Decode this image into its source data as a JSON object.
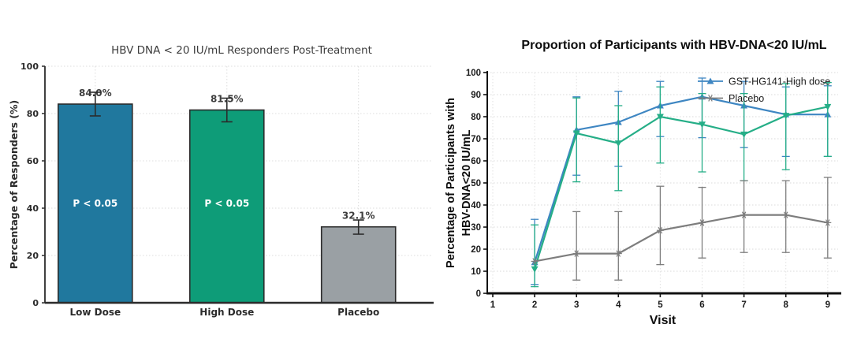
{
  "page": {
    "background": "#ffffff"
  },
  "chart_data": [
    {
      "type": "bar",
      "title": "HBV DNA < 20 IU/mL Responders Post-Treatment",
      "ylabel": "Percentage of Responders (%)",
      "xlabel": "",
      "categories": [
        "Low Dose",
        "High Dose",
        "Placebo"
      ],
      "values": [
        84.0,
        81.5,
        32.1
      ],
      "value_labels": [
        "84.0%",
        "81.5%",
        "32.1%"
      ],
      "bar_annotations": [
        "P < 0.05",
        "P < 0.05",
        ""
      ],
      "error_low": [
        79,
        76.5,
        29
      ],
      "error_high": [
        89,
        86.5,
        35
      ],
      "bar_colors": [
        "#20789e",
        "#0e9c78",
        "#9aa0a4"
      ],
      "bar_edge_color": "#2b2b2b",
      "error_color": "#2b2b2b",
      "ylim": [
        0,
        100
      ],
      "yticks": [
        0,
        20,
        40,
        60,
        80,
        100
      ],
      "grid": true
    },
    {
      "type": "line",
      "title": "Proportion of Participants with HBV-DNA<20 IU/mL",
      "xlabel": "Visit",
      "ylabel_lines": [
        "Percentage of Participants with",
        "HBV-DNA<20 IU/mL"
      ],
      "x": [
        2,
        3,
        4,
        5,
        6,
        7,
        8,
        9
      ],
      "xticks": [
        1,
        2,
        3,
        4,
        5,
        6,
        7,
        8,
        9
      ],
      "yticks": [
        0,
        10,
        20,
        30,
        40,
        50,
        60,
        70,
        80,
        90,
        100
      ],
      "ylim": [
        0,
        100
      ],
      "xlim": [
        0.85,
        9.3
      ],
      "grid": true,
      "legend_position": "top-right",
      "legend": [
        "GST-HG141-High dose",
        "Placebo"
      ],
      "series": [
        {
          "name": "GST-HG141-High dose",
          "in_legend": true,
          "color": "#3e86c2",
          "marker": "triangle-up",
          "values": [
            14,
            74,
            77.5,
            85,
            89,
            85,
            81,
            81
          ],
          "err_low": [
            4,
            53.5,
            57.5,
            71,
            70.5,
            66,
            62,
            62
          ],
          "err_high": [
            33.5,
            89,
            91.5,
            96,
            97.5,
            96,
            93.5,
            94
          ]
        },
        {
          "name": "",
          "in_legend": false,
          "color": "#25ae87",
          "marker": "triangle-down",
          "values": [
            11,
            72.5,
            68,
            80,
            76.5,
            72,
            80.5,
            84.5
          ],
          "err_low": [
            3,
            50.5,
            46.5,
            59,
            55,
            51,
            56,
            62
          ],
          "err_high": [
            31,
            88.5,
            85,
            93.5,
            90.5,
            90.5,
            95,
            95.5
          ]
        },
        {
          "name": "Placebo",
          "in_legend": true,
          "color": "#7d7d7d",
          "marker": "star",
          "values": [
            14.5,
            18,
            18,
            28.5,
            32,
            35.5,
            35.5,
            32
          ],
          "err_low": [
            null,
            6,
            6,
            13,
            16,
            18.5,
            18.5,
            16
          ],
          "err_high": [
            null,
            37,
            37,
            48.5,
            48,
            51,
            51,
            52.5
          ]
        }
      ]
    }
  ]
}
